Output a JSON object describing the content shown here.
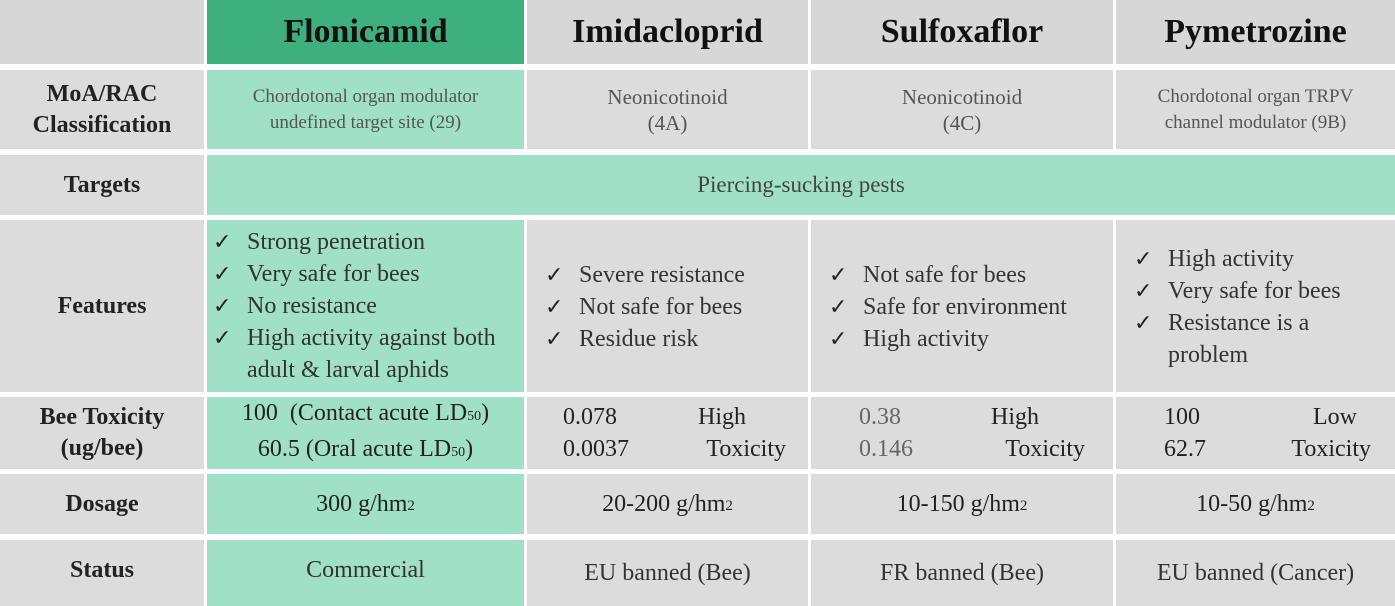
{
  "columns": [
    "Flonicamid",
    "Imidacloprid",
    "Sulfoxaflor",
    "Pymetrozine"
  ],
  "row_labels": {
    "moa": [
      "MoA/RAC",
      "Classification"
    ],
    "targets": "Targets",
    "features": "Features",
    "bee_toxicity": [
      "Bee Toxicity",
      "(ug/bee)"
    ],
    "dosage": "Dosage",
    "status": "Status"
  },
  "moa": {
    "flonicamid": [
      "Chordotonal organ modulator",
      "undefined target site (29)"
    ],
    "imidacloprid": [
      "Neonicotinoid",
      "(4A)"
    ],
    "sulfoxaflor": [
      "Neonicotinoid",
      "(4C)"
    ],
    "pymetrozine": [
      "Chordotonal organ TRPV",
      "channel modulator (9B)"
    ]
  },
  "targets": "Piercing-sucking pests",
  "check_mark": "✓",
  "features": {
    "flonicamid": [
      "Strong penetration",
      "Very safe for bees",
      "No resistance",
      "High activity against both adult & larval aphids"
    ],
    "imidacloprid": [
      "Severe resistance",
      "Not safe for bees",
      "Residue risk"
    ],
    "sulfoxaflor": [
      "Not safe for bees",
      "Safe for environment",
      "High activity"
    ],
    "pymetrozine": [
      "High activity",
      "Very safe for bees",
      "Resistance is a problem"
    ]
  },
  "bee_toxicity": {
    "flonicamid": [
      {
        "value": "100",
        "desc": "(Contact acute LD",
        "sub": "50",
        "end": ")"
      },
      {
        "value": "60.5",
        "desc": "(Oral acute LD",
        "sub": "50",
        "end": ")"
      }
    ],
    "imidacloprid": {
      "values": [
        "0.078",
        "0.0037"
      ],
      "level": [
        "High",
        "Toxicity"
      ]
    },
    "sulfoxaflor": {
      "values": [
        "0.38",
        "0.146"
      ],
      "level": [
        "High",
        "Toxicity"
      ]
    },
    "pymetrozine": {
      "values": [
        "100",
        "62.7"
      ],
      "level": [
        "Low",
        "Toxicity"
      ]
    }
  },
  "dosage": {
    "flonicamid": {
      "text": "300 g/hm",
      "sup": "2"
    },
    "imidacloprid": {
      "text": "20-200 g/hm",
      "sup": "2"
    },
    "sulfoxaflor": {
      "text": "10-150 g/hm",
      "sup": "2"
    },
    "pymetrozine": {
      "text": "10-50 g/hm",
      "sup": "2"
    }
  },
  "status": {
    "flonicamid": "Commercial",
    "imidacloprid": "EU banned (Bee)",
    "sulfoxaflor": "FR banned (Bee)",
    "pymetrozine": "EU banned (Cancer)"
  },
  "colors": {
    "highlight_header": "#3db07d",
    "highlight_cell": "#a0e0c6",
    "cell_gray": "#dcdcdc"
  }
}
